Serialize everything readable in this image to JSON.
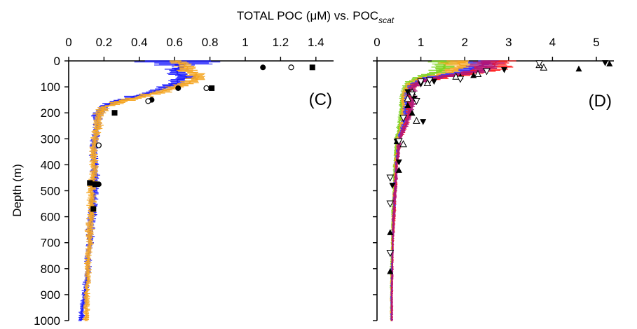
{
  "figure": {
    "title_main": "TOTAL POC (",
    "title_mu": "μ",
    "title_mid": "M) vs. POC",
    "title_sub": "scat"
  },
  "chart_data": [
    {
      "type": "line",
      "panel_label": "(C)",
      "ylabel": "Depth (m)",
      "ylim": [
        0,
        1000
      ],
      "xlim": [
        0,
        1.5
      ],
      "y_reversed": true,
      "x_axis_position": "top",
      "xticks": [
        "0",
        "0.2",
        "0.4",
        "0.6",
        "0.8",
        "1",
        "1.2",
        "1.4"
      ],
      "xtick_values": [
        0,
        0.2,
        0.4,
        0.6,
        0.8,
        1.0,
        1.2,
        1.4
      ],
      "yticks": [
        "0",
        "100",
        "200",
        "300",
        "400",
        "500",
        "600",
        "700",
        "800",
        "900",
        "1000"
      ],
      "ytick_values": [
        0,
        100,
        200,
        300,
        400,
        500,
        600,
        700,
        800,
        900,
        1000
      ],
      "series": [
        {
          "color": "#1a1aff",
          "style": "profile",
          "y": [
            0,
            20,
            40,
            60,
            80,
            100,
            120,
            140,
            160,
            180,
            200,
            230,
            260,
            300,
            350,
            400,
            450,
            500,
            550,
            600,
            650,
            700,
            750,
            800,
            850,
            900,
            950,
            1000
          ],
          "x": [
            0.6,
            0.64,
            0.6,
            0.66,
            0.62,
            0.56,
            0.48,
            0.36,
            0.25,
            0.19,
            0.17,
            0.16,
            0.16,
            0.15,
            0.14,
            0.15,
            0.15,
            0.14,
            0.14,
            0.13,
            0.12,
            0.12,
            0.11,
            0.11,
            0.1,
            0.09,
            0.08,
            0.07
          ],
          "spread": [
            0.24,
            0.06,
            0.05,
            0.05,
            0.05,
            0.05,
            0.05,
            0.05,
            0.04,
            0.03,
            0.03,
            0.02,
            0.02,
            0.02,
            0.02,
            0.02,
            0.02,
            0.02,
            0.02,
            0.02,
            0.02,
            0.015,
            0.015,
            0.015,
            0.015,
            0.015,
            0.015,
            0.015
          ]
        },
        {
          "color": "#f5a623",
          "style": "profile",
          "y": [
            0,
            20,
            40,
            60,
            80,
            100,
            120,
            140,
            160,
            180,
            200,
            230,
            260,
            300,
            350,
            400,
            450,
            500,
            550,
            600,
            650,
            700,
            750,
            800,
            850,
            900,
            950,
            1000
          ],
          "x": [
            0.62,
            0.66,
            0.68,
            0.74,
            0.7,
            0.62,
            0.52,
            0.4,
            0.28,
            0.2,
            0.18,
            0.17,
            0.16,
            0.15,
            0.14,
            0.14,
            0.14,
            0.13,
            0.13,
            0.13,
            0.12,
            0.12,
            0.11,
            0.11,
            0.11,
            0.1,
            0.1,
            0.1
          ],
          "spread": [
            0.04,
            0.05,
            0.05,
            0.05,
            0.05,
            0.05,
            0.05,
            0.05,
            0.04,
            0.03,
            0.03,
            0.025,
            0.025,
            0.02,
            0.02,
            0.02,
            0.02,
            0.02,
            0.02,
            0.02,
            0.02,
            0.015,
            0.015,
            0.015,
            0.015,
            0.015,
            0.015,
            0.015
          ]
        },
        {
          "marker": "circle-filled",
          "color": "#000000",
          "points": [
            [
              1.1,
              25
            ],
            [
              0.62,
              105
            ],
            [
              0.47,
              150
            ],
            [
              0.17,
              325
            ],
            [
              0.17,
              475
            ]
          ]
        },
        {
          "marker": "circle-open",
          "color": "#000000",
          "points": [
            [
              1.26,
              25
            ],
            [
              0.78,
              105
            ],
            [
              0.45,
              155
            ],
            [
              0.17,
              325
            ]
          ]
        },
        {
          "marker": "square-filled",
          "color": "#000000",
          "points": [
            [
              1.38,
              25
            ],
            [
              0.81,
              105
            ],
            [
              0.26,
              200
            ],
            [
              0.12,
              470
            ],
            [
              0.15,
              475
            ],
            [
              0.14,
              570
            ]
          ]
        }
      ]
    },
    {
      "type": "line",
      "panel_label": "(D)",
      "ylim": [
        0,
        1000
      ],
      "xlim": [
        0,
        5.5
      ],
      "y_reversed": true,
      "x_axis_position": "top",
      "xticks": [
        "0",
        "1",
        "2",
        "3",
        "4",
        "5"
      ],
      "xtick_values": [
        0,
        1,
        2,
        3,
        4,
        5
      ],
      "series": [
        {
          "color": "#7ed321",
          "style": "profile",
          "y": [
            0,
            20,
            40,
            60,
            80,
            100,
            130,
            160,
            200,
            250,
            300,
            400,
            500,
            600,
            700,
            800,
            900,
            1000
          ],
          "x": [
            1.5,
            1.6,
            1.4,
            1.0,
            0.75,
            0.65,
            0.6,
            0.55,
            0.55,
            0.5,
            0.45,
            0.4,
            0.38,
            0.36,
            0.34,
            0.32,
            0.32,
            0.32
          ],
          "spread": [
            0.3,
            0.25,
            0.2,
            0.15,
            0.1,
            0.08,
            0.06,
            0.05,
            0.05,
            0.04,
            0.04,
            0.03,
            0.03,
            0.03,
            0.02,
            0.02,
            0.02,
            0.02
          ]
        },
        {
          "color": "#f5a623",
          "style": "profile",
          "y": [
            0,
            20,
            40,
            60,
            80,
            100,
            130,
            160,
            200,
            250,
            300,
            400,
            500,
            600,
            700,
            800,
            900,
            1000
          ],
          "x": [
            1.9,
            2.0,
            1.8,
            1.2,
            0.85,
            0.7,
            0.62,
            0.6,
            0.6,
            0.55,
            0.48,
            0.42,
            0.4,
            0.37,
            0.35,
            0.33,
            0.32,
            0.32
          ],
          "spread": [
            0.4,
            0.3,
            0.25,
            0.2,
            0.12,
            0.08,
            0.06,
            0.05,
            0.05,
            0.04,
            0.04,
            0.03,
            0.03,
            0.03,
            0.02,
            0.02,
            0.02,
            0.02
          ]
        },
        {
          "color": "#3333ff",
          "style": "profile",
          "y": [
            0,
            20,
            40,
            60,
            80,
            100,
            130,
            160,
            200,
            250,
            300,
            400,
            500,
            600,
            700,
            800,
            900,
            1000
          ],
          "x": [
            2.5,
            2.4,
            2.1,
            1.4,
            0.95,
            0.75,
            0.7,
            0.68,
            0.66,
            0.6,
            0.5,
            0.44,
            0.41,
            0.38,
            0.36,
            0.34,
            0.33,
            0.33
          ],
          "spread": [
            0.35,
            0.35,
            0.3,
            0.2,
            0.12,
            0.08,
            0.07,
            0.06,
            0.06,
            0.05,
            0.04,
            0.03,
            0.03,
            0.03,
            0.02,
            0.02,
            0.02,
            0.02
          ]
        },
        {
          "color": "#ff1a1a",
          "style": "profile",
          "y": [
            0,
            20,
            40,
            60,
            80,
            100,
            130,
            160,
            200,
            250,
            300,
            400,
            500,
            600,
            700,
            800,
            900,
            1000
          ],
          "x": [
            2.7,
            2.6,
            2.4,
            1.6,
            1.0,
            0.8,
            0.75,
            0.75,
            0.72,
            0.65,
            0.52,
            0.45,
            0.42,
            0.39,
            0.36,
            0.35,
            0.34,
            0.34
          ],
          "spread": [
            0.4,
            0.4,
            0.3,
            0.25,
            0.12,
            0.08,
            0.07,
            0.07,
            0.06,
            0.05,
            0.04,
            0.03,
            0.03,
            0.03,
            0.02,
            0.02,
            0.02,
            0.02
          ]
        },
        {
          "color": "#b0177a",
          "style": "profile",
          "y": [
            0,
            20,
            40,
            60,
            80,
            100,
            130,
            160,
            200,
            250,
            300,
            400,
            500,
            600,
            700,
            800,
            900,
            1000
          ],
          "x": [
            2.5,
            2.5,
            2.3,
            1.5,
            1.0,
            0.82,
            0.8,
            0.8,
            0.75,
            0.66,
            0.52,
            0.45,
            0.42,
            0.38,
            0.36,
            0.35,
            0.34,
            0.34
          ],
          "spread": [
            0.3,
            0.3,
            0.25,
            0.2,
            0.12,
            0.08,
            0.08,
            0.08,
            0.06,
            0.05,
            0.04,
            0.03,
            0.03,
            0.03,
            0.02,
            0.02,
            0.02,
            0.02
          ]
        },
        {
          "marker": "triangle-up-filled",
          "color": "#000000",
          "points": [
            [
              5.3,
              10
            ],
            [
              4.6,
              30
            ],
            [
              1.9,
              60
            ],
            [
              2.2,
              55
            ],
            [
              0.7,
              170
            ],
            [
              0.8,
              200
            ],
            [
              0.45,
              310
            ],
            [
              0.5,
              420
            ],
            [
              0.3,
              660
            ],
            [
              0.3,
              810
            ]
          ]
        },
        {
          "marker": "triangle-down-filled",
          "color": "#000000",
          "points": [
            [
              5.2,
              8
            ],
            [
              2.9,
              35
            ],
            [
              1.3,
              80
            ],
            [
              1.0,
              90
            ],
            [
              0.7,
              120
            ],
            [
              0.85,
              145
            ],
            [
              1.05,
              235
            ],
            [
              0.45,
              310
            ],
            [
              0.5,
              390
            ],
            [
              0.35,
              480
            ]
          ]
        },
        {
          "marker": "triangle-up-open",
          "color": "#000000",
          "points": [
            [
              3.8,
              25
            ],
            [
              3.7,
              15
            ],
            [
              2.3,
              50
            ],
            [
              1.8,
              60
            ],
            [
              1.15,
              85
            ],
            [
              0.8,
              120
            ],
            [
              0.7,
              145
            ],
            [
              0.9,
              230
            ],
            [
              0.6,
              320
            ]
          ]
        },
        {
          "marker": "triangle-down-open",
          "color": "#000000",
          "points": [
            [
              3.7,
              10
            ],
            [
              2.5,
              40
            ],
            [
              1.9,
              70
            ],
            [
              1.2,
              75
            ],
            [
              1.0,
              80
            ],
            [
              0.8,
              130
            ],
            [
              0.9,
              155
            ],
            [
              0.6,
              220
            ],
            [
              0.5,
              310
            ],
            [
              0.3,
              450
            ],
            [
              0.3,
              550
            ],
            [
              0.3,
              740
            ]
          ]
        }
      ]
    }
  ]
}
